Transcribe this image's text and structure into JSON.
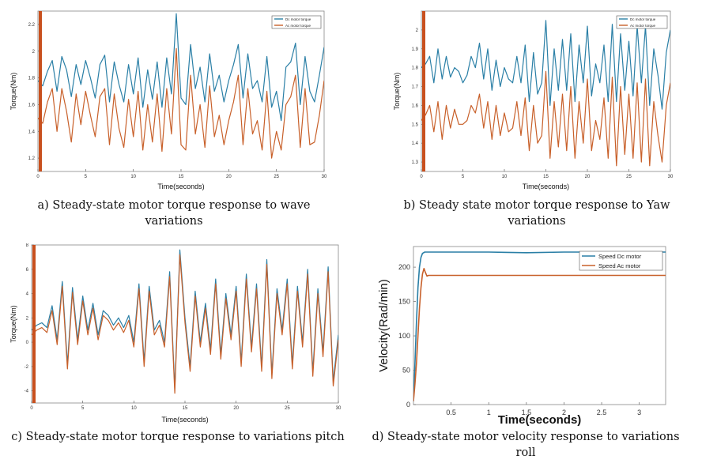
{
  "chart_data": [
    {
      "type": "line",
      "xlabel": "Time(seconds)",
      "ylabel": "Torque(Nm)",
      "xlim": [
        0,
        30
      ],
      "ylim": [
        1.1,
        2.3
      ],
      "xticks": [
        0,
        5,
        10,
        15,
        20,
        25,
        30
      ],
      "yticks": [
        1.2,
        1.4,
        1.6,
        1.8,
        2,
        2.2
      ],
      "legend_position": "top-right",
      "grid": false,
      "series": [
        {
          "name": "Dc motor torque",
          "color": "#2a7fa6",
          "x": [
            0,
            0.5,
            1,
            1.5,
            2,
            2.5,
            3,
            3.5,
            4,
            4.5,
            5,
            5.5,
            6,
            6.5,
            7,
            7.5,
            8,
            8.5,
            9,
            9.5,
            10,
            10.5,
            11,
            11.5,
            12,
            12.5,
            13,
            13.5,
            14,
            14.5,
            15,
            15.5,
            16,
            16.5,
            17,
            17.5,
            18,
            18.5,
            19,
            19.5,
            20,
            20.5,
            21,
            21.5,
            22,
            22.5,
            23,
            23.5,
            24,
            24.5,
            25,
            25.5,
            26,
            26.5,
            27,
            27.5,
            28,
            28.5,
            29,
            29.5,
            30
          ],
          "y": [
            1.78,
            1.74,
            1.85,
            1.93,
            1.7,
            1.96,
            1.86,
            1.66,
            1.9,
            1.75,
            1.93,
            1.8,
            1.65,
            1.9,
            1.97,
            1.62,
            1.92,
            1.75,
            1.62,
            1.9,
            1.68,
            1.95,
            1.58,
            1.86,
            1.64,
            1.92,
            1.58,
            1.95,
            1.68,
            2.28,
            1.65,
            1.6,
            2.05,
            1.72,
            1.88,
            1.62,
            1.98,
            1.7,
            1.82,
            1.62,
            1.78,
            1.9,
            2.05,
            1.65,
            1.98,
            1.72,
            1.78,
            1.62,
            1.96,
            1.58,
            1.7,
            1.48,
            1.88,
            1.92,
            2.06,
            1.6,
            1.96,
            1.7,
            1.62,
            1.82,
            2.03
          ]
        },
        {
          "name": "Ac motor torque",
          "color": "#c8602a",
          "x": [
            0,
            0.5,
            1,
            1.5,
            2,
            2.5,
            3,
            3.5,
            4,
            4.5,
            5,
            5.5,
            6,
            6.5,
            7,
            7.5,
            8,
            8.5,
            9,
            9.5,
            10,
            10.5,
            11,
            11.5,
            12,
            12.5,
            13,
            13.5,
            14,
            14.5,
            15,
            15.5,
            16,
            16.5,
            17,
            17.5,
            18,
            18.5,
            19,
            19.5,
            20,
            20.5,
            21,
            21.5,
            22,
            22.5,
            23,
            23.5,
            24,
            24.5,
            25,
            25.5,
            26,
            26.5,
            27,
            27.5,
            28,
            28.5,
            29,
            29.5,
            30
          ],
          "y": [
            1.5,
            1.46,
            1.62,
            1.72,
            1.4,
            1.72,
            1.55,
            1.32,
            1.68,
            1.45,
            1.7,
            1.52,
            1.36,
            1.66,
            1.72,
            1.3,
            1.68,
            1.42,
            1.28,
            1.64,
            1.36,
            1.7,
            1.26,
            1.6,
            1.32,
            1.68,
            1.25,
            1.72,
            1.38,
            2.02,
            1.3,
            1.26,
            1.82,
            1.38,
            1.6,
            1.28,
            1.74,
            1.36,
            1.52,
            1.3,
            1.48,
            1.62,
            1.82,
            1.3,
            1.72,
            1.38,
            1.48,
            1.26,
            1.7,
            1.2,
            1.4,
            1.26,
            1.6,
            1.66,
            1.82,
            1.28,
            1.72,
            1.3,
            1.32,
            1.52,
            1.78
          ]
        }
      ]
    },
    {
      "type": "line",
      "xlabel": "Time(seconds)",
      "ylabel": "Torque(Nm)",
      "xlim": [
        0,
        30
      ],
      "ylim": [
        1.25,
        2.1
      ],
      "xticks": [
        0,
        5,
        10,
        15,
        20,
        25,
        30
      ],
      "yticks": [
        1.3,
        1.4,
        1.5,
        1.6,
        1.7,
        1.8,
        1.9,
        2
      ],
      "legend_position": "top-right",
      "grid": false,
      "series": [
        {
          "name": "Dc motor torque",
          "color": "#2a7fa6",
          "x": [
            0,
            0.5,
            1,
            1.5,
            2,
            2.5,
            3,
            3.5,
            4,
            4.5,
            5,
            5.5,
            6,
            6.5,
            7,
            7.5,
            8,
            8.5,
            9,
            9.5,
            10,
            10.5,
            11,
            11.5,
            12,
            12.5,
            13,
            13.5,
            14,
            14.5,
            15,
            15.5,
            16,
            16.5,
            17,
            17.5,
            18,
            18.5,
            19,
            19.5,
            20,
            20.5,
            21,
            21.5,
            22,
            22.5,
            23,
            23.5,
            24,
            24.5,
            25,
            25.5,
            26,
            26.5,
            27,
            27.5,
            28,
            28.5,
            29,
            29.5,
            30
          ],
          "y": [
            1.8,
            1.82,
            1.86,
            1.72,
            1.9,
            1.74,
            1.86,
            1.75,
            1.8,
            1.78,
            1.72,
            1.76,
            1.86,
            1.8,
            1.93,
            1.74,
            1.9,
            1.68,
            1.84,
            1.7,
            1.8,
            1.74,
            1.72,
            1.86,
            1.72,
            1.92,
            1.62,
            1.88,
            1.66,
            1.72,
            2.05,
            1.6,
            1.9,
            1.68,
            1.95,
            1.68,
            1.98,
            1.62,
            1.92,
            1.72,
            2.02,
            1.65,
            1.82,
            1.72,
            1.92,
            1.62,
            2.03,
            1.62,
            1.98,
            1.68,
            1.94,
            1.65,
            2.02,
            1.72,
            2.02,
            1.6,
            1.9,
            1.76,
            1.58,
            1.88,
            2.0
          ]
        },
        {
          "name": "Ac motor torque",
          "color": "#c8602a",
          "x": [
            0,
            0.5,
            1,
            1.5,
            2,
            2.5,
            3,
            3.5,
            4,
            4.5,
            5,
            5.5,
            6,
            6.5,
            7,
            7.5,
            8,
            8.5,
            9,
            9.5,
            10,
            10.5,
            11,
            11.5,
            12,
            12.5,
            13,
            13.5,
            14,
            14.5,
            15,
            15.5,
            16,
            16.5,
            17,
            17.5,
            18,
            18.5,
            19,
            19.5,
            20,
            20.5,
            21,
            21.5,
            22,
            22.5,
            23,
            23.5,
            24,
            24.5,
            25,
            25.5,
            26,
            26.5,
            27,
            27.5,
            28,
            28.5,
            29,
            29.5,
            30
          ],
          "y": [
            1.52,
            1.55,
            1.6,
            1.46,
            1.62,
            1.42,
            1.6,
            1.48,
            1.58,
            1.5,
            1.5,
            1.52,
            1.6,
            1.56,
            1.66,
            1.48,
            1.62,
            1.42,
            1.6,
            1.44,
            1.56,
            1.46,
            1.48,
            1.62,
            1.44,
            1.64,
            1.36,
            1.6,
            1.4,
            1.44,
            1.78,
            1.32,
            1.62,
            1.38,
            1.66,
            1.36,
            1.7,
            1.32,
            1.62,
            1.4,
            1.74,
            1.36,
            1.52,
            1.42,
            1.64,
            1.32,
            1.75,
            1.28,
            1.7,
            1.34,
            1.66,
            1.32,
            1.72,
            1.3,
            1.74,
            1.28,
            1.62,
            1.44,
            1.3,
            1.6,
            1.72
          ]
        }
      ]
    },
    {
      "type": "line",
      "xlabel": "Time(seconds)",
      "ylabel": "Torque(Nm)",
      "xlim": [
        0,
        30
      ],
      "ylim": [
        -5,
        8
      ],
      "xticks": [
        0,
        5,
        10,
        15,
        20,
        25,
        30
      ],
      "yticks": [
        -4,
        -2,
        0,
        2,
        4,
        6,
        8
      ],
      "grid": false,
      "series": [
        {
          "name": "",
          "color": "#2a7fa6",
          "x": [
            0,
            0.5,
            1,
            1.5,
            2,
            2.5,
            3,
            3.5,
            4,
            4.5,
            5,
            5.5,
            6,
            6.5,
            7,
            7.5,
            8,
            8.5,
            9,
            9.5,
            10,
            10.5,
            11,
            11.5,
            12,
            12.5,
            13,
            13.5,
            14,
            14.5,
            15,
            15.5,
            16,
            16.5,
            17,
            17.5,
            18,
            18.5,
            19,
            19.5,
            20,
            20.5,
            21,
            21.5,
            22,
            22.5,
            23,
            23.5,
            24,
            24.5,
            25,
            25.5,
            26,
            26.5,
            27,
            27.5,
            28,
            28.5,
            29,
            29.5,
            30
          ],
          "y": [
            1,
            1.4,
            1.6,
            1.2,
            3,
            0.2,
            5,
            -1.8,
            4.5,
            0.2,
            3.8,
            1,
            3.2,
            0.6,
            2.6,
            2.2,
            1.4,
            2,
            1.2,
            2.2,
            0,
            4.8,
            -1.6,
            4.6,
            1,
            1.8,
            0,
            5.8,
            -3.8,
            7.6,
            2,
            -2,
            4.2,
            0,
            3.2,
            -0.6,
            5.2,
            -1,
            4,
            0.6,
            4.6,
            -1.6,
            5.6,
            -0.4,
            4.8,
            -2,
            6.8,
            -2.6,
            4.4,
            1,
            5.2,
            -1.8,
            4.6,
            0,
            6,
            -2.4,
            4.4,
            -0.8,
            6.2,
            -3.2,
            0.6
          ]
        },
        {
          "name": "",
          "color": "#c8602a",
          "x": [
            0,
            0.5,
            1,
            1.5,
            2,
            2.5,
            3,
            3.5,
            4,
            4.5,
            5,
            5.5,
            6,
            6.5,
            7,
            7.5,
            8,
            8.5,
            9,
            9.5,
            10,
            10.5,
            11,
            11.5,
            12,
            12.5,
            13,
            13.5,
            14,
            14.5,
            15,
            15.5,
            16,
            16.5,
            17,
            17.5,
            18,
            18.5,
            19,
            19.5,
            20,
            20.5,
            21,
            21.5,
            22,
            22.5,
            23,
            23.5,
            24,
            24.5,
            25,
            25.5,
            26,
            26.5,
            27,
            27.5,
            28,
            28.5,
            29,
            29.5,
            30
          ],
          "y": [
            0.6,
            1,
            1.2,
            0.8,
            2.6,
            -0.2,
            4.6,
            -2.2,
            4.1,
            -0.2,
            3.4,
            0.6,
            2.8,
            0.2,
            2.2,
            1.8,
            1,
            1.6,
            0.8,
            1.8,
            -0.4,
            4.4,
            -2,
            4.2,
            0.6,
            1.4,
            -0.4,
            5.4,
            -4.2,
            7.2,
            1.6,
            -2.4,
            3.8,
            -0.4,
            2.8,
            -1,
            4.8,
            -1.4,
            3.6,
            0.2,
            4.2,
            -2,
            5.2,
            -0.8,
            4.4,
            -2.4,
            6.4,
            -3,
            4,
            0.6,
            4.8,
            -2.2,
            4.2,
            -0.4,
            5.6,
            -2.8,
            4,
            -1.2,
            5.8,
            -3.6,
            0.2
          ]
        }
      ]
    },
    {
      "type": "line",
      "xlabel": "Time(seconds)",
      "ylabel": "Velocity(Rad/min)",
      "xlim": [
        0,
        3.35
      ],
      "ylim": [
        0,
        230
      ],
      "xticks": [
        0.5,
        1,
        1.5,
        2,
        2.5,
        3
      ],
      "yticks": [
        0,
        50,
        100,
        150,
        200
      ],
      "legend_position": "top-right",
      "grid": false,
      "series": [
        {
          "name": "Speed Dc motor",
          "color": "#2a7fa6",
          "x": [
            0,
            0.02,
            0.04,
            0.06,
            0.08,
            0.1,
            0.12,
            0.15,
            0.2,
            0.3,
            0.5,
            1,
            1.5,
            2,
            2.5,
            3,
            3.35
          ],
          "y": [
            5,
            60,
            120,
            170,
            200,
            214,
            220,
            222,
            222,
            222,
            222,
            222,
            221,
            222,
            222,
            222,
            222
          ]
        },
        {
          "name": "Speed Ac motor",
          "color": "#c8602a",
          "x": [
            0,
            0.02,
            0.04,
            0.06,
            0.08,
            0.1,
            0.12,
            0.14,
            0.16,
            0.18,
            0.2,
            0.25,
            0.3,
            0.5,
            1,
            1.5,
            2,
            2.5,
            3,
            3.35
          ],
          "y": [
            5,
            30,
            60,
            100,
            140,
            170,
            190,
            198,
            192,
            187,
            188,
            188,
            188,
            188,
            188,
            188,
            188,
            188,
            188,
            188
          ]
        }
      ]
    }
  ],
  "captions": [
    "a) Steady-state motor torque response to wave variations",
    "b) Steady state motor torque response to Yaw variations",
    "c) Steady-state motor torque response to variations pitch",
    "d) Steady-state motor velocity response to variations roll"
  ]
}
